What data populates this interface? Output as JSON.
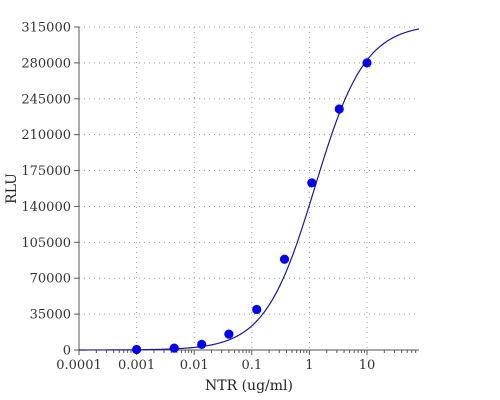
{
  "chart_data": {
    "type": "scatter",
    "title": "",
    "xlabel": "NTR (ug/ml)",
    "ylabel": "RLU",
    "x_scale": "log",
    "xlim": [
      0.0001,
      80
    ],
    "ylim": [
      0,
      315000
    ],
    "x_tick_labels": [
      "0.0001",
      "0.001",
      "0.01",
      "0.1",
      "1",
      "10"
    ],
    "x_tick_values": [
      0.0001,
      0.001,
      0.01,
      0.1,
      1,
      10
    ],
    "y_tick_labels": [
      "0",
      "35000",
      "70000",
      "105000",
      "140000",
      "175000",
      "210000",
      "245000",
      "280000",
      "315000"
    ],
    "y_tick_values": [
      0,
      35000,
      70000,
      105000,
      140000,
      175000,
      210000,
      245000,
      280000,
      315000
    ],
    "grid": true,
    "legend": "none",
    "series": [
      {
        "kind": "points",
        "color": "#0000ee",
        "x": [
          0.001,
          0.0045,
          0.0135,
          0.04,
          0.122,
          0.37,
          1.1,
          3.3,
          10
        ],
        "y": [
          500,
          1800,
          5500,
          15500,
          39500,
          88500,
          163000,
          235000,
          280000
        ]
      },
      {
        "kind": "curve",
        "color": "#1a1a8c",
        "fit": {
          "bottom": 0,
          "top": 318000,
          "ec50": 1.25,
          "hill": 1.0
        }
      }
    ]
  }
}
